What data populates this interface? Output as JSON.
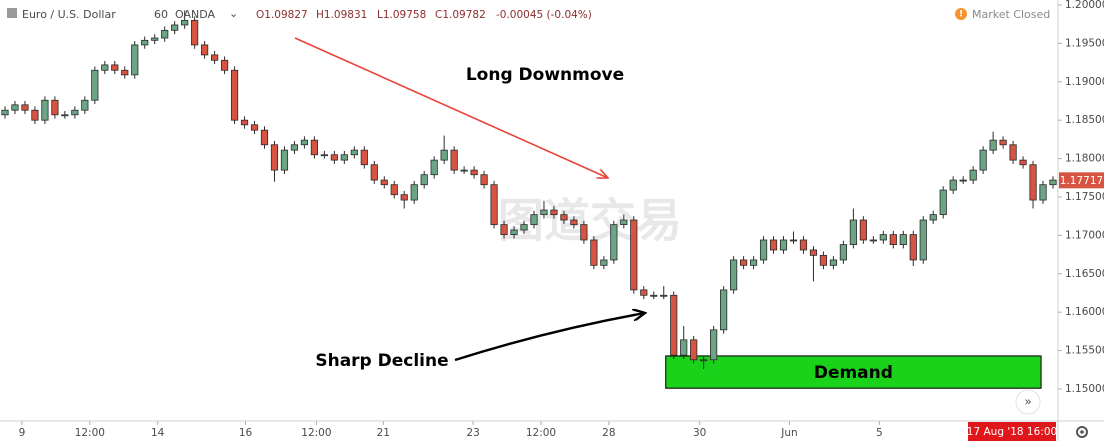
{
  "chart_data": {
    "type": "candlestick",
    "header": {
      "symbol": "Euro / U.S. Dollar",
      "interval": "60",
      "exchange": "OANDA",
      "ohlc": [
        "O1.09827",
        "H1.09831",
        "L1.09758",
        "C1.09782"
      ],
      "change": "-0.00045 (-0.04%)",
      "status": "Market Closed"
    },
    "watermark": "图道交易",
    "annotations": {
      "top": "Long Downmove",
      "bottom": "Sharp Decline"
    },
    "demand_zone": {
      "label": "Demand",
      "y": [
        1.1501,
        1.1543
      ],
      "x": [
        66.7,
        104.3
      ],
      "color": "#19d219"
    },
    "last_price": 1.17717,
    "crosshair_time": "17 Aug '18 16:00",
    "up_color": "#6ba583",
    "down_color": "#d75442",
    "grid": false,
    "xlim": [
      0,
      106
    ],
    "xticks": [
      {
        "value": 2.2,
        "label": "9"
      },
      {
        "value": 9.0,
        "label": "12:00"
      },
      {
        "value": 15.8,
        "label": "14"
      },
      {
        "value": 24.6,
        "label": "16"
      },
      {
        "value": 31.7,
        "label": "12:00"
      },
      {
        "value": 38.4,
        "label": "21"
      },
      {
        "value": 47.4,
        "label": "23"
      },
      {
        "value": 54.2,
        "label": "12:00"
      },
      {
        "value": 61.0,
        "label": "28"
      },
      {
        "value": 70.1,
        "label": "30"
      },
      {
        "value": 79.1,
        "label": "Jun"
      },
      {
        "value": 88.1,
        "label": "5"
      }
    ],
    "ylim": [
      1.14596,
      1.20065
    ],
    "yticks": [
      {
        "value": 1.15,
        "label": "1.15000"
      },
      {
        "value": 1.155,
        "label": "1.15500"
      },
      {
        "value": 1.16,
        "label": "1.16000"
      },
      {
        "value": 1.165,
        "label": "1.16500"
      },
      {
        "value": 1.17,
        "label": "1.17000"
      },
      {
        "value": 1.175,
        "label": "1.17500"
      },
      {
        "value": 1.18,
        "label": "1.18000"
      },
      {
        "value": 1.185,
        "label": "1.18500"
      },
      {
        "value": 1.19,
        "label": "1.19000"
      },
      {
        "value": 1.195,
        "label": "1.19500"
      },
      {
        "value": 1.2,
        "label": "1.20000"
      }
    ],
    "open": [
      1.1857,
      1.1863,
      1.187,
      1.1863,
      1.185,
      1.1876,
      1.1857,
      1.1857,
      1.1863,
      1.1876,
      1.1915,
      1.1922,
      1.1915,
      1.1909,
      1.1948,
      1.1954,
      1.1957,
      1.1967,
      1.1974,
      1.198,
      1.1948,
      1.1935,
      1.1928,
      1.1915,
      1.185,
      1.1844,
      1.1837,
      1.1818,
      1.1785,
      1.1811,
      1.1818,
      1.1824,
      1.1805,
      1.1805,
      1.1798,
      1.1805,
      1.1811,
      1.1792,
      1.1772,
      1.1766,
      1.1753,
      1.1746,
      1.1766,
      1.1779,
      1.1798,
      1.1811,
      1.1785,
      1.1785,
      1.1779,
      1.1766,
      1.1714,
      1.1701,
      1.1707,
      1.1714,
      1.1727,
      1.1733,
      1.1727,
      1.172,
      1.1714,
      1.1694,
      1.1661,
      1.1668,
      1.1714,
      1.172,
      1.1629,
      1.1622,
      1.1622,
      1.1622,
      1.1544,
      1.1564,
      1.1538,
      1.1538,
      1.1577,
      1.1629,
      1.1668,
      1.1661,
      1.1668,
      1.1694,
      1.1681,
      1.1694,
      1.1694,
      1.1681,
      1.1674,
      1.1661,
      1.1668,
      1.1688,
      1.172,
      1.1694,
      1.1694,
      1.1701,
      1.1688,
      1.1701,
      1.1668,
      1.172,
      1.1727,
      1.1759,
      1.1772,
      1.1772,
      1.1785,
      1.1811,
      1.1824,
      1.1818,
      1.1798,
      1.1792,
      1.1746,
      1.1766
    ],
    "high": [
      1.1868,
      1.1875,
      1.1875,
      1.1868,
      1.1881,
      1.1881,
      1.1862,
      1.1868,
      1.1881,
      1.192,
      1.1927,
      1.1927,
      1.192,
      1.1953,
      1.1959,
      1.1962,
      1.1972,
      1.1979,
      1.1993,
      1.1985,
      1.1953,
      1.194,
      1.1933,
      1.192,
      1.1855,
      1.1849,
      1.1842,
      1.1823,
      1.1816,
      1.1823,
      1.1829,
      1.1829,
      1.181,
      1.181,
      1.181,
      1.1816,
      1.1816,
      1.1797,
      1.1777,
      1.1771,
      1.1758,
      1.1771,
      1.1784,
      1.1803,
      1.183,
      1.1816,
      1.179,
      1.179,
      1.1784,
      1.1771,
      1.1719,
      1.1712,
      1.1719,
      1.1732,
      1.1745,
      1.1738,
      1.1732,
      1.1725,
      1.1719,
      1.1699,
      1.1673,
      1.1719,
      1.1727,
      1.1725,
      1.1634,
      1.1627,
      1.1634,
      1.1627,
      1.1582,
      1.1569,
      1.1543,
      1.1582,
      1.1634,
      1.1673,
      1.1673,
      1.1673,
      1.1699,
      1.1699,
      1.1699,
      1.1705,
      1.1699,
      1.1686,
      1.1679,
      1.1673,
      1.1693,
      1.1735,
      1.1725,
      1.1699,
      1.1706,
      1.1706,
      1.1706,
      1.1706,
      1.1725,
      1.1732,
      1.1764,
      1.1777,
      1.1777,
      1.179,
      1.1816,
      1.1835,
      1.1829,
      1.1823,
      1.1803,
      1.1797,
      1.1771,
      1.1777
    ],
    "low": [
      1.1852,
      1.1858,
      1.1858,
      1.1845,
      1.1845,
      1.1852,
      1.1852,
      1.1852,
      1.1858,
      1.1871,
      1.191,
      1.191,
      1.1904,
      1.1904,
      1.1943,
      1.1949,
      1.1952,
      1.1962,
      1.1969,
      1.1943,
      1.193,
      1.1923,
      1.191,
      1.1845,
      1.1839,
      1.1832,
      1.1813,
      1.177,
      1.178,
      1.1806,
      1.1813,
      1.18,
      1.18,
      1.1793,
      1.1793,
      1.18,
      1.1787,
      1.1767,
      1.1761,
      1.1748,
      1.1735,
      1.1741,
      1.1761,
      1.1774,
      1.1793,
      1.178,
      1.178,
      1.1774,
      1.1761,
      1.1709,
      1.1696,
      1.1696,
      1.1702,
      1.1709,
      1.1722,
      1.1722,
      1.1715,
      1.1709,
      1.1689,
      1.1656,
      1.1656,
      1.1663,
      1.1709,
      1.1624,
      1.1617,
      1.1617,
      1.1617,
      1.1539,
      1.1539,
      1.1533,
      1.1526,
      1.1533,
      1.1572,
      1.1624,
      1.1656,
      1.1656,
      1.1663,
      1.1676,
      1.1676,
      1.1689,
      1.1676,
      1.164,
      1.1656,
      1.1656,
      1.1663,
      1.1683,
      1.1689,
      1.1689,
      1.1689,
      1.1683,
      1.1683,
      1.166,
      1.1663,
      1.1715,
      1.1722,
      1.1754,
      1.1767,
      1.1767,
      1.178,
      1.1806,
      1.1813,
      1.1793,
      1.1787,
      1.1735,
      1.1741,
      1.1761
    ],
    "close": [
      1.1863,
      1.187,
      1.1863,
      1.185,
      1.1876,
      1.1857,
      1.1857,
      1.1863,
      1.1876,
      1.1915,
      1.1922,
      1.1915,
      1.1909,
      1.1948,
      1.1954,
      1.1957,
      1.1967,
      1.1974,
      1.198,
      1.1948,
      1.1935,
      1.1928,
      1.1915,
      1.185,
      1.1844,
      1.1837,
      1.1818,
      1.1785,
      1.1811,
      1.1818,
      1.1824,
      1.1805,
      1.1805,
      1.1798,
      1.1805,
      1.1811,
      1.1792,
      1.1772,
      1.1766,
      1.1753,
      1.1746,
      1.1766,
      1.1779,
      1.1798,
      1.1811,
      1.1785,
      1.1785,
      1.1779,
      1.1766,
      1.1714,
      1.1701,
      1.1707,
      1.1714,
      1.1727,
      1.1733,
      1.1727,
      1.172,
      1.1714,
      1.1694,
      1.1661,
      1.1668,
      1.1714,
      1.172,
      1.1629,
      1.1622,
      1.1622,
      1.1622,
      1.1544,
      1.1564,
      1.1538,
      1.1538,
      1.1577,
      1.1629,
      1.1668,
      1.1661,
      1.1668,
      1.1694,
      1.1681,
      1.1694,
      1.1694,
      1.1681,
      1.1674,
      1.1661,
      1.1668,
      1.1688,
      1.172,
      1.1694,
      1.1694,
      1.1701,
      1.1688,
      1.1701,
      1.1668,
      1.172,
      1.1727,
      1.1759,
      1.1772,
      1.1772,
      1.1785,
      1.1811,
      1.1824,
      1.1818,
      1.1798,
      1.1792,
      1.1746,
      1.1766,
      1.1772
    ]
  }
}
